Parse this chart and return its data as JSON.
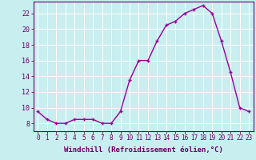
{
  "x": [
    0,
    1,
    2,
    3,
    4,
    5,
    6,
    7,
    8,
    9,
    10,
    11,
    12,
    13,
    14,
    15,
    16,
    17,
    18,
    19,
    20,
    21,
    22,
    23
  ],
  "y": [
    9.5,
    8.5,
    8.0,
    8.0,
    8.5,
    8.5,
    8.5,
    8.0,
    8.0,
    9.5,
    13.5,
    16.0,
    16.0,
    18.5,
    20.5,
    21.0,
    22.0,
    22.5,
    23.0,
    22.0,
    18.5,
    14.5,
    10.0,
    9.5
  ],
  "line_color": "#990099",
  "marker": "+",
  "markersize": 3.5,
  "linewidth": 1.0,
  "markeredgewidth": 1.0,
  "xlabel": "Windchill (Refroidissement éolien,°C)",
  "xlabel_fontsize": 6.5,
  "ylim": [
    7,
    23.5
  ],
  "xlim": [
    -0.5,
    23.5
  ],
  "yticks": [
    8,
    10,
    12,
    14,
    16,
    18,
    20,
    22
  ],
  "xticks": [
    0,
    1,
    2,
    3,
    4,
    5,
    6,
    7,
    8,
    9,
    10,
    11,
    12,
    13,
    14,
    15,
    16,
    17,
    18,
    19,
    20,
    21,
    22,
    23
  ],
  "bg_color": "#c8eef0",
  "grid_color": "#ffffff",
  "tick_color": "#660066",
  "spine_color": "#660066",
  "label_color": "#660066",
  "tick_fontsize": 5.5,
  "ytick_fontsize": 6.0
}
